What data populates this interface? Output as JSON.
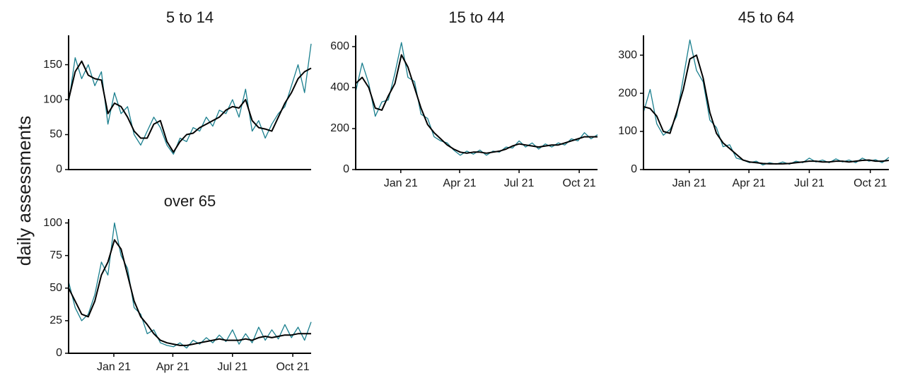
{
  "ylabel": "daily assessments",
  "chart_data": [
    {
      "type": "line",
      "title": "5 to 14",
      "x": [
        "2020-10-24",
        "2020-11-03",
        "2020-11-13",
        "2020-11-23",
        "2020-12-03",
        "2020-12-13",
        "2020-12-23",
        "2021-01-02",
        "2021-01-12",
        "2021-01-22",
        "2021-02-01",
        "2021-02-11",
        "2021-02-21",
        "2021-03-03",
        "2021-03-13",
        "2021-03-23",
        "2021-04-02",
        "2021-04-12",
        "2021-04-22",
        "2021-05-02",
        "2021-05-12",
        "2021-05-22",
        "2021-06-01",
        "2021-06-11",
        "2021-06-21",
        "2021-07-01",
        "2021-07-11",
        "2021-07-21",
        "2021-07-31",
        "2021-08-10",
        "2021-08-20",
        "2021-08-30",
        "2021-09-09",
        "2021-09-19",
        "2021-09-29",
        "2021-10-09",
        "2021-10-19",
        "2021-10-29"
      ],
      "series": [
        {
          "color": "#1a7f8e",
          "values": [
            95,
            160,
            130,
            150,
            120,
            140,
            65,
            110,
            80,
            90,
            50,
            35,
            55,
            75,
            60,
            35,
            22,
            45,
            40,
            60,
            55,
            75,
            62,
            85,
            80,
            100,
            75,
            115,
            55,
            70,
            45,
            65,
            80,
            90,
            120,
            150,
            110,
            180
          ]
        },
        {
          "color": "#000000",
          "values": [
            100,
            140,
            155,
            135,
            130,
            128,
            80,
            95,
            90,
            75,
            55,
            45,
            45,
            65,
            70,
            40,
            25,
            40,
            50,
            52,
            60,
            65,
            70,
            75,
            85,
            90,
            88,
            100,
            70,
            60,
            58,
            55,
            75,
            95,
            110,
            130,
            140,
            145
          ]
        }
      ],
      "xlim": [
        "2020-10-24",
        "2021-10-29"
      ],
      "ylim": [
        0,
        192
      ],
      "yticks": [
        0,
        50,
        100,
        150
      ]
    },
    {
      "type": "line",
      "title": "15 to 44",
      "x": [
        "2020-10-24",
        "2020-11-03",
        "2020-11-13",
        "2020-11-23",
        "2020-12-03",
        "2020-12-13",
        "2020-12-23",
        "2021-01-02",
        "2021-01-12",
        "2021-01-22",
        "2021-02-01",
        "2021-02-11",
        "2021-02-21",
        "2021-03-03",
        "2021-03-13",
        "2021-03-23",
        "2021-04-02",
        "2021-04-12",
        "2021-04-22",
        "2021-05-02",
        "2021-05-12",
        "2021-05-22",
        "2021-06-01",
        "2021-06-11",
        "2021-06-21",
        "2021-07-01",
        "2021-07-11",
        "2021-07-21",
        "2021-07-31",
        "2021-08-10",
        "2021-08-20",
        "2021-08-30",
        "2021-09-09",
        "2021-09-19",
        "2021-09-29",
        "2021-10-09",
        "2021-10-19",
        "2021-10-29"
      ],
      "series": [
        {
          "color": "#1a7f8e",
          "values": [
            380,
            520,
            420,
            260,
            330,
            340,
            470,
            620,
            450,
            430,
            270,
            250,
            160,
            140,
            130,
            95,
            70,
            90,
            75,
            95,
            70,
            90,
            85,
            110,
            105,
            140,
            110,
            130,
            100,
            125,
            110,
            130,
            120,
            150,
            140,
            180,
            150,
            170
          ]
        },
        {
          "color": "#000000",
          "values": [
            420,
            450,
            400,
            300,
            290,
            360,
            420,
            560,
            500,
            400,
            300,
            220,
            180,
            150,
            120,
            100,
            85,
            80,
            85,
            85,
            80,
            85,
            90,
            100,
            115,
            125,
            120,
            115,
            110,
            115,
            120,
            120,
            130,
            140,
            150,
            160,
            160,
            160
          ]
        }
      ],
      "xlim": [
        "2020-10-24",
        "2021-10-29"
      ],
      "ylim": [
        0,
        655
      ],
      "yticks": [
        0,
        200,
        400,
        600
      ],
      "xticks": [
        {
          "value": "2021-01-01",
          "label": "Jan 21"
        },
        {
          "value": "2021-04-01",
          "label": "Apr 21"
        },
        {
          "value": "2021-07-01",
          "label": "Jul 21"
        },
        {
          "value": "2021-10-01",
          "label": "Oct 21"
        }
      ]
    },
    {
      "type": "line",
      "title": "45 to 64",
      "x": [
        "2020-10-24",
        "2020-11-03",
        "2020-11-13",
        "2020-11-23",
        "2020-12-03",
        "2020-12-13",
        "2020-12-23",
        "2021-01-02",
        "2021-01-12",
        "2021-01-22",
        "2021-02-01",
        "2021-02-11",
        "2021-02-21",
        "2021-03-03",
        "2021-03-13",
        "2021-03-23",
        "2021-04-02",
        "2021-04-12",
        "2021-04-22",
        "2021-05-02",
        "2021-05-12",
        "2021-05-22",
        "2021-06-01",
        "2021-06-11",
        "2021-06-21",
        "2021-07-01",
        "2021-07-11",
        "2021-07-21",
        "2021-07-31",
        "2021-08-10",
        "2021-08-20",
        "2021-08-30",
        "2021-09-09",
        "2021-09-19",
        "2021-09-29",
        "2021-10-09",
        "2021-10-19",
        "2021-10-29"
      ],
      "series": [
        {
          "color": "#1a7f8e",
          "values": [
            150,
            210,
            120,
            90,
            105,
            140,
            240,
            340,
            260,
            230,
            130,
            110,
            60,
            65,
            30,
            25,
            18,
            22,
            12,
            18,
            14,
            20,
            14,
            22,
            18,
            30,
            20,
            25,
            18,
            28,
            20,
            25,
            18,
            30,
            22,
            26,
            18,
            32
          ]
        },
        {
          "color": "#000000",
          "values": [
            165,
            160,
            140,
            100,
            95,
            150,
            210,
            290,
            300,
            240,
            150,
            95,
            70,
            55,
            40,
            25,
            20,
            18,
            16,
            15,
            15,
            15,
            16,
            18,
            20,
            22,
            22,
            20,
            20,
            22,
            22,
            20,
            22,
            24,
            25,
            22,
            22,
            24
          ]
        }
      ],
      "xlim": [
        "2020-10-24",
        "2021-10-29"
      ],
      "ylim": [
        0,
        352
      ],
      "yticks": [
        0,
        100,
        200,
        300
      ],
      "xticks": [
        {
          "value": "2021-01-01",
          "label": "Jan 21"
        },
        {
          "value": "2021-04-01",
          "label": "Apr 21"
        },
        {
          "value": "2021-07-01",
          "label": "Jul 21"
        },
        {
          "value": "2021-10-01",
          "label": "Oct 21"
        }
      ]
    },
    {
      "type": "line",
      "title": "over 65",
      "x": [
        "2020-10-24",
        "2020-11-03",
        "2020-11-13",
        "2020-11-23",
        "2020-12-03",
        "2020-12-13",
        "2020-12-23",
        "2021-01-02",
        "2021-01-12",
        "2021-01-22",
        "2021-02-01",
        "2021-02-11",
        "2021-02-21",
        "2021-03-03",
        "2021-03-13",
        "2021-03-23",
        "2021-04-02",
        "2021-04-12",
        "2021-04-22",
        "2021-05-02",
        "2021-05-12",
        "2021-05-22",
        "2021-06-01",
        "2021-06-11",
        "2021-06-21",
        "2021-07-01",
        "2021-07-11",
        "2021-07-21",
        "2021-07-31",
        "2021-08-10",
        "2021-08-20",
        "2021-08-30",
        "2021-09-09",
        "2021-09-19",
        "2021-09-29",
        "2021-10-09",
        "2021-10-19",
        "2021-10-29"
      ],
      "series": [
        {
          "color": "#1a7f8e",
          "values": [
            55,
            35,
            25,
            30,
            45,
            70,
            60,
            100,
            75,
            65,
            35,
            30,
            15,
            18,
            8,
            6,
            5,
            8,
            4,
            10,
            7,
            12,
            8,
            14,
            9,
            18,
            7,
            15,
            8,
            20,
            10,
            18,
            11,
            22,
            12,
            20,
            10,
            24
          ]
        },
        {
          "color": "#000000",
          "values": [
            50,
            40,
            30,
            28,
            40,
            60,
            70,
            87,
            80,
            60,
            40,
            28,
            22,
            15,
            10,
            8,
            7,
            6,
            6,
            7,
            8,
            9,
            10,
            11,
            10,
            10,
            10,
            11,
            10,
            12,
            13,
            12,
            13,
            14,
            14,
            15,
            15,
            15
          ]
        }
      ],
      "xlim": [
        "2020-10-24",
        "2021-10-29"
      ],
      "ylim": [
        0,
        103
      ],
      "yticks": [
        0,
        25,
        50,
        75,
        100
      ],
      "xticks": [
        {
          "value": "2021-01-01",
          "label": "Jan 21"
        },
        {
          "value": "2021-04-01",
          "label": "Apr 21"
        },
        {
          "value": "2021-07-01",
          "label": "Jul 21"
        },
        {
          "value": "2021-10-01",
          "label": "Oct 21"
        }
      ]
    }
  ]
}
